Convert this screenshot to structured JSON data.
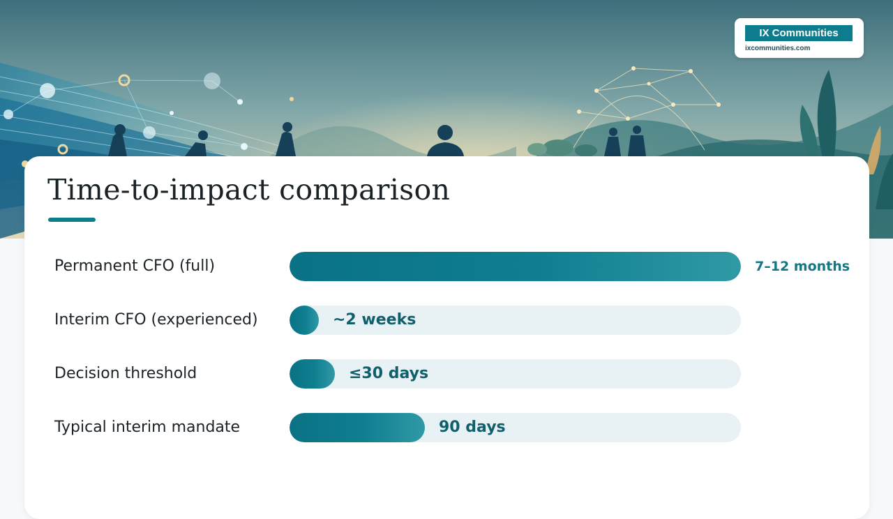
{
  "brand": {
    "name": "IX Communities",
    "url": "ixcommunities.com"
  },
  "colors": {
    "accent": "#0d7c8c",
    "track": "#e8f1f4",
    "value_text": "#0f5f6c"
  },
  "chart_data": {
    "type": "bar",
    "orientation": "horizontal",
    "title": "Time-to-impact comparison",
    "xlabel": "",
    "ylabel": "",
    "unit": "days",
    "xlim": [
      0,
      300
    ],
    "grid": false,
    "legend": "none",
    "categories": [
      "Permanent CFO (full)",
      "Interim CFO (experienced)",
      "Decision threshold",
      "Typical interim mandate"
    ],
    "values": [
      300,
      14,
      30,
      90
    ],
    "value_labels": [
      "7–12 months",
      "~2 weeks",
      "≤30 days",
      "90 days"
    ]
  }
}
